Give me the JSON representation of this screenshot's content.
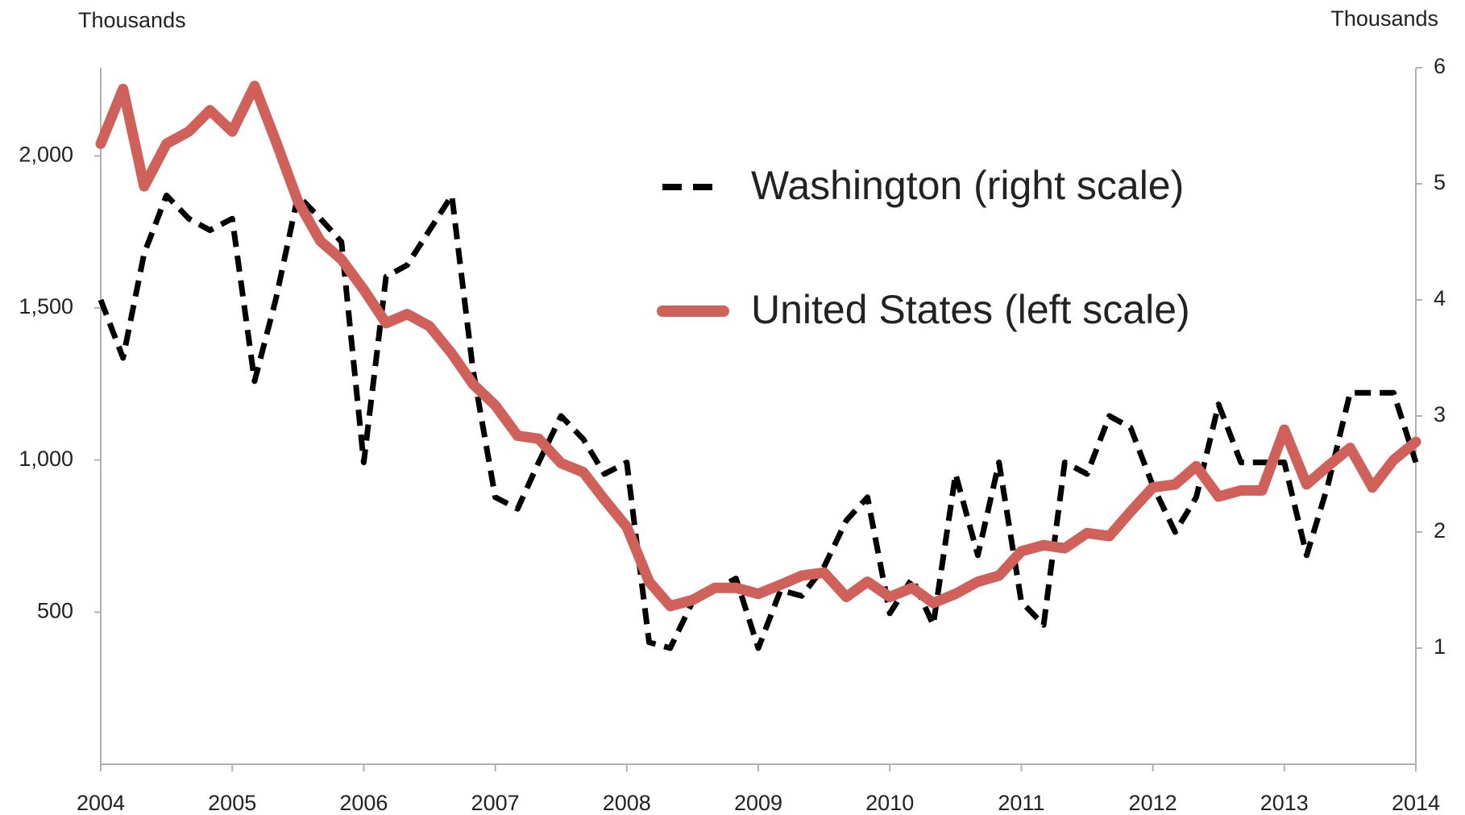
{
  "chart_data": {
    "type": "line",
    "y_label": "Thousands",
    "y2_label": "Thousands",
    "x": [
      2004,
      2004.17,
      2004.33,
      2004.5,
      2004.67,
      2004.83,
      2005,
      2005.17,
      2005.33,
      2005.5,
      2005.67,
      2005.83,
      2006,
      2006.17,
      2006.33,
      2006.5,
      2006.67,
      2006.83,
      2007,
      2007.17,
      2007.33,
      2007.5,
      2007.67,
      2007.83,
      2008,
      2008.17,
      2008.33,
      2008.5,
      2008.67,
      2008.83,
      2009,
      2009.17,
      2009.33,
      2009.5,
      2009.67,
      2009.83,
      2010,
      2010.17,
      2010.33,
      2010.5,
      2010.67,
      2010.83,
      2011,
      2011.17,
      2011.33,
      2011.5,
      2011.67,
      2011.83,
      2012,
      2012.17,
      2012.33,
      2012.5,
      2012.67,
      2012.83,
      2013,
      2013.17,
      2013.33,
      2013.5,
      2013.67,
      2013.83,
      2014
    ],
    "xlim": [
      2004,
      2014
    ],
    "xticks": [
      2004,
      2005,
      2006,
      2007,
      2008,
      2009,
      2010,
      2011,
      2012,
      2013,
      2014
    ],
    "ylim": [
      0,
      2290
    ],
    "yticks": [
      500,
      {
        "value": 1000,
        "label": "1,000"
      },
      {
        "value": 1500,
        "label": "1,500"
      },
      {
        "value": 2000,
        "label": "2,000"
      }
    ],
    "y2lim": [
      0,
      6
    ],
    "y2ticks": [
      1,
      2,
      3,
      4,
      5,
      6
    ],
    "legend": "upper-center",
    "series": [
      {
        "name": "Washington (right scale)",
        "color": "#000000",
        "axis": "y2",
        "line_style": "dashed",
        "values": [
          4.0,
          3.5,
          4.4,
          4.9,
          4.7,
          4.6,
          4.7,
          3.3,
          4.0,
          4.9,
          4.7,
          4.5,
          2.6,
          4.2,
          4.3,
          4.6,
          4.9,
          3.4,
          2.3,
          2.2,
          2.6,
          3.0,
          2.8,
          2.5,
          2.6,
          1.05,
          1.0,
          1.4,
          1.5,
          1.6,
          1.0,
          1.5,
          1.45,
          1.7,
          2.1,
          2.3,
          1.3,
          1.6,
          1.2,
          2.5,
          1.8,
          2.6,
          1.4,
          1.2,
          2.6,
          2.5,
          3.0,
          2.9,
          2.4,
          2.0,
          2.3,
          3.1,
          2.6,
          2.6,
          2.6,
          1.8,
          2.4,
          3.2,
          3.2,
          3.2,
          2.6
        ]
      },
      {
        "name": "United States (left scale)",
        "color": "#d0605a",
        "axis": "y",
        "line_style": "solid",
        "values": [
          2040,
          2220,
          1900,
          2040,
          2080,
          2150,
          2080,
          2230,
          2050,
          1850,
          1720,
          1660,
          1560,
          1450,
          1480,
          1440,
          1350,
          1250,
          1180,
          1080,
          1070,
          990,
          960,
          870,
          780,
          600,
          520,
          540,
          580,
          580,
          560,
          590,
          620,
          630,
          550,
          600,
          550,
          580,
          530,
          560,
          600,
          620,
          700,
          720,
          710,
          760,
          750,
          830,
          910,
          920,
          980,
          880,
          900,
          900,
          1100,
          920,
          980,
          1040,
          910,
          1000,
          1060
        ]
      }
    ]
  }
}
